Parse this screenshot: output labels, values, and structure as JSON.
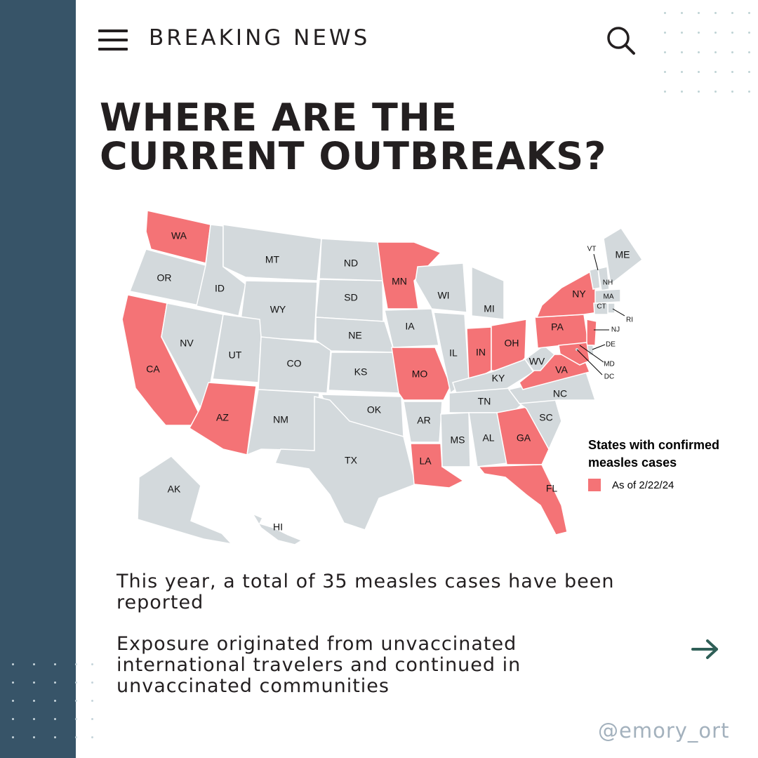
{
  "header": {
    "title": "BREAKING NEWS",
    "menu_icon": "hamburger-menu-icon",
    "search_icon": "search-icon"
  },
  "headline": {
    "line1": "WHERE ARE THE",
    "line2": "CURRENT OUTBREAKS?"
  },
  "map": {
    "states": [
      "WA",
      "OR",
      "CA",
      "NV",
      "ID",
      "MT",
      "WY",
      "UT",
      "AZ",
      "CO",
      "NM",
      "ND",
      "SD",
      "NE",
      "KS",
      "OK",
      "TX",
      "MN",
      "IA",
      "MO",
      "AR",
      "LA",
      "WI",
      "IL",
      "MI",
      "IN",
      "OH",
      "KY",
      "TN",
      "MS",
      "AL",
      "GA",
      "FL",
      "SC",
      "NC",
      "VA",
      "WV",
      "PA",
      "NY",
      "VT",
      "NH",
      "ME",
      "MA",
      "RI",
      "CT",
      "NJ",
      "DE",
      "MD",
      "DC",
      "AK",
      "HI"
    ],
    "highlighted_states": [
      "WA",
      "CA",
      "AZ",
      "MN",
      "MO",
      "LA",
      "IN",
      "OH",
      "GA",
      "FL",
      "VA",
      "PA",
      "NY",
      "NJ",
      "MD"
    ],
    "colors": {
      "highlight": "#f47376",
      "base": "#d3d9dc",
      "border": "#ffffff"
    }
  },
  "legend": {
    "title": "States with confirmed measles cases",
    "item_label": "As of 2/22/24",
    "swatch_color": "#f47376"
  },
  "body": {
    "paragraph1": "This year, a total of 35 measles cases have been reported",
    "paragraph2": "Exposure originated from unvaccinated international travelers and continued in unvaccinated communities"
  },
  "next_icon": "arrow-right-icon",
  "handle": "@emory_ort",
  "colors": {
    "sidebar": "#375468",
    "text": "#231f20",
    "arrow": "#2f5f57",
    "handle": "#a3b1bd"
  }
}
